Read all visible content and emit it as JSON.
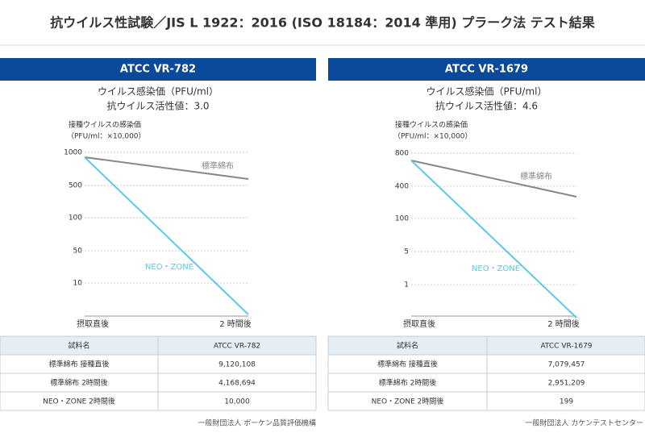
{
  "title": "抗ウイルス性試験／JIS L 1922：2016 (ISO 18184：2014 準用) プラーク法 テスト結果",
  "panels": [
    {
      "header": "ATCC VR-782",
      "subtitle": "ウイルス感染価（PFU/ml）",
      "activity": "抗ウイルス活性値：3.0",
      "axis_title": "接種ウイルスの感染価",
      "axis_unit": "（PFU/ml：×10,000）",
      "y_ticks": [
        "1000",
        "500",
        "100",
        "50",
        "10"
      ],
      "x_ticks": [
        "摂取直後",
        "2 時間後"
      ],
      "line_labels": [
        "標準綿布",
        "NEO・ZONE"
      ],
      "table": {
        "header": [
          "試料名",
          "ATCC VR-782"
        ],
        "rows": [
          [
            "標準綿布 接種直後",
            "9,120,108"
          ],
          [
            "標準綿布 2時間後",
            "4,168,694"
          ],
          [
            "NEO・ZONE 2時間後",
            "10,000"
          ]
        ]
      },
      "source": "一般財団法人 ボーケン品質評価機構"
    },
    {
      "header": "ATCC VR-1679",
      "subtitle": "ウイルス感染価（PFU/ml）",
      "activity": "抗ウイルス活性値：4.6",
      "axis_title": "接種ウイルスの感染価",
      "axis_unit": "（PFU/ml：×10,000）",
      "y_ticks": [
        "800",
        "400",
        "100",
        "5",
        "1"
      ],
      "x_ticks": [
        "摂取直後",
        "2 時間後"
      ],
      "line_labels": [
        "標準綿布",
        "NEO・ZONE"
      ],
      "table": {
        "header": [
          "試料名",
          "ATCC VR-1679"
        ],
        "rows": [
          [
            "標準綿布 接種直後",
            "7,079,457"
          ],
          [
            "標準綿布 2時間後",
            "2,951,209"
          ],
          [
            "NEO・ZONE 2時間後",
            "199"
          ]
        ]
      },
      "source": "一般財団法人 カケンテストセンター"
    }
  ]
}
